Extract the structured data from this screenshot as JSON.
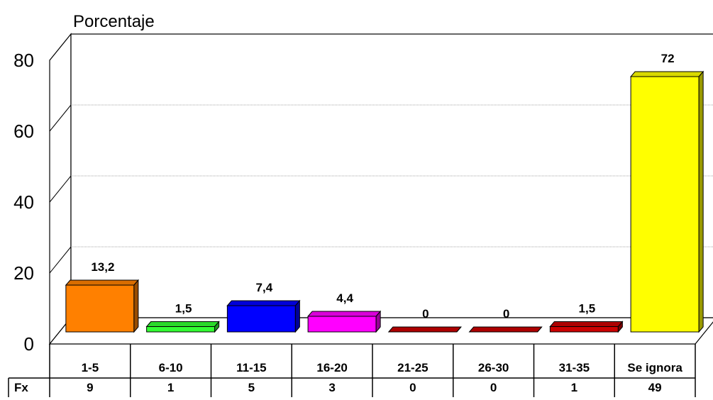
{
  "chart_data": {
    "type": "bar",
    "title": "",
    "ylabel": "Porcentaje",
    "ylim": [
      0,
      80
    ],
    "yticks": [
      "0",
      "20",
      "40",
      "60",
      "80"
    ],
    "grid": true,
    "categories": [
      "1-5",
      "6-10",
      "11-15",
      "16-20",
      "21-25",
      "26-30",
      "31-35",
      "Se ignora"
    ],
    "values": [
      13.2,
      1.5,
      7.4,
      4.4,
      0,
      0,
      1.5,
      72
    ],
    "value_labels": [
      "13,2",
      "1,5",
      "7,4",
      "4,4",
      "0",
      "0",
      "1,5",
      "72"
    ],
    "colors": [
      "#FF8000",
      "#33FF33",
      "#0000FF",
      "#FF00FF",
      "#CC0000",
      "#CC0000",
      "#CC0000",
      "#FFFF00"
    ],
    "table": {
      "row_label": "Fx",
      "values": [
        "9",
        "1",
        "5",
        "3",
        "0",
        "0",
        "1",
        "49"
      ]
    }
  }
}
